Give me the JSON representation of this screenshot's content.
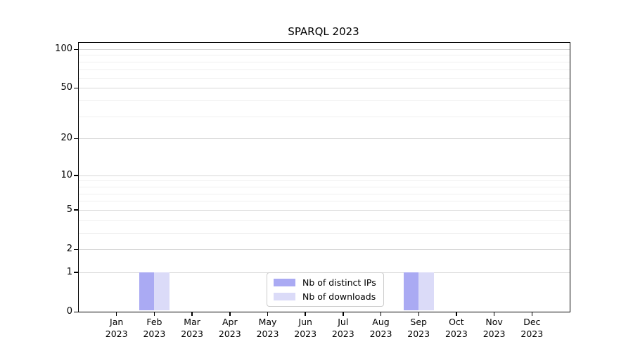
{
  "chart_data": {
    "type": "bar",
    "title": "SPARQL 2023",
    "categories": [
      "Jan",
      "Feb",
      "Mar",
      "Apr",
      "May",
      "Jun",
      "Jul",
      "Aug",
      "Sep",
      "Oct",
      "Nov",
      "Dec"
    ],
    "x_axis": {
      "year_label": "2023"
    },
    "y_axis": {
      "scale": "log1p",
      "ticks": [
        100,
        50,
        20,
        10,
        5,
        2,
        1,
        0
      ],
      "minor_gridlines": [
        3,
        4,
        6,
        7,
        8,
        9,
        30,
        40,
        60,
        70,
        80,
        90
      ],
      "ylim": [
        0,
        113
      ],
      "grid": "on"
    },
    "series": [
      {
        "name": "Nb of distinct IPs",
        "color": "#aaaaf3",
        "values": [
          0,
          1,
          0,
          0,
          0,
          0,
          0,
          0,
          1,
          0,
          0,
          0
        ]
      },
      {
        "name": "Nb of downloads",
        "color": "#dbdbf8",
        "values": [
          0,
          1,
          0,
          0,
          0,
          0,
          0,
          0,
          1,
          0,
          0,
          0
        ]
      }
    ],
    "legend_position": "bottom-center",
    "colors": {
      "axis": "#000000",
      "grid_major": "#d7d7d7",
      "grid_minor": "#f0f0f0",
      "background": "#ffffff"
    }
  }
}
